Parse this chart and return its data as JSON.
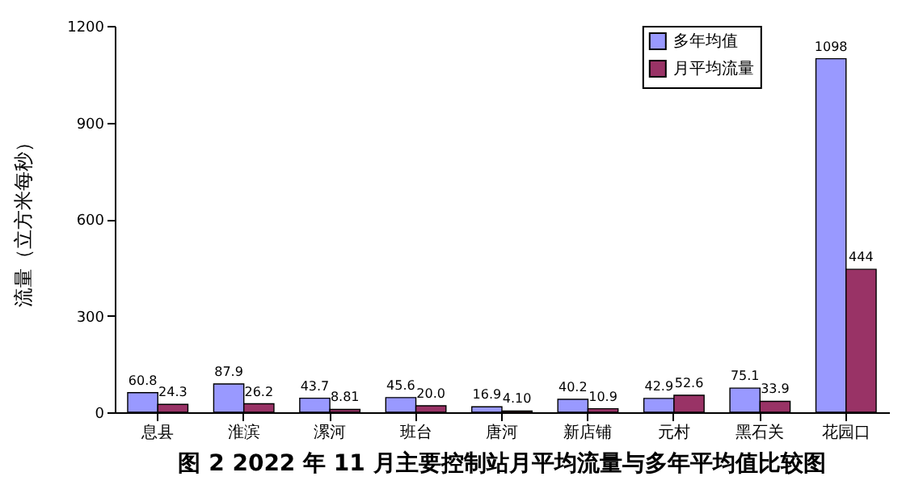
{
  "chart_data": {
    "type": "bar",
    "title": "图 2 2022 年 11 月主要控制站月平均流量与多年平均值比较图",
    "ylabel": "流量（立方米每秒）",
    "categories": [
      "息县",
      "淮滨",
      "漯河",
      "班台",
      "唐河",
      "新店铺",
      "元村",
      "黑石关",
      "花园口"
    ],
    "series": [
      {
        "name": "多年均值",
        "color": "#9999ff",
        "values": [
          60.8,
          87.9,
          43.7,
          45.6,
          16.9,
          40.2,
          42.9,
          75.1,
          1098
        ],
        "value_labels": [
          "60.8",
          "87.9",
          "43.7",
          "45.6",
          "16.9",
          "40.2",
          "42.9",
          "75.1",
          "1098"
        ]
      },
      {
        "name": "月平均流量",
        "color": "#993366",
        "values": [
          24.3,
          26.2,
          8.81,
          20.0,
          4.1,
          10.9,
          52.6,
          33.9,
          444
        ],
        "value_labels": [
          "24.3",
          "26.2",
          "8.81",
          "20.0",
          "4.10",
          "10.9",
          "52.6",
          "33.9",
          "444"
        ]
      }
    ],
    "ylim": [
      0,
      1200
    ],
    "yticks": [
      0,
      300,
      600,
      900,
      1200
    ],
    "grid": false,
    "legend": "top right"
  }
}
